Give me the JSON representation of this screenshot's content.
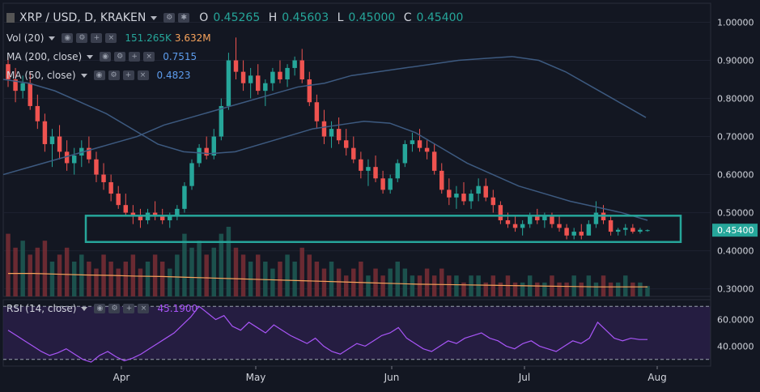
{
  "header": {
    "symbol_title": "XRP / USD, D, KRAKEN",
    "ohlc": {
      "o_label": "O",
      "o": "0.45265",
      "h_label": "H",
      "h": "0.45603",
      "l_label": "L",
      "l": "0.45000",
      "c_label": "C",
      "c": "0.45400"
    }
  },
  "indicators": {
    "vol": {
      "label": "Vol (20)",
      "value1": "151.265K",
      "value2": "3.632M"
    },
    "ma200": {
      "label": "MA (200, close)",
      "value": "0.7515"
    },
    "ma50": {
      "label": "MA (50, close)",
      "value": "0.4823"
    },
    "rsi": {
      "label": "RSI (14, close)",
      "value": "45.1900"
    }
  },
  "colors": {
    "background": "#131722",
    "up": "#26a69a",
    "down": "#ef5350",
    "ma200": "#3d5a80",
    "ma50": "#3d5a80",
    "vol_ma": "#f7a35c",
    "rsi": "#a855f7",
    "highlight_box": "#26a69a"
  },
  "chart_data": [
    {
      "type": "candlestick",
      "price_axis": {
        "ticks": [
          "1.00000",
          "0.90000",
          "0.80000",
          "0.70000",
          "0.60000",
          "0.50000",
          "0.40000",
          "0.30000"
        ],
        "current_price_label": "0.45400",
        "ylim": [
          0.28,
          1.05
        ]
      },
      "time_axis": {
        "labels": [
          "Apr",
          "May",
          "Jun",
          "Jul",
          "Aug"
        ]
      },
      "candles": [
        [
          0.89,
          0.91,
          0.83,
          0.85
        ],
        [
          0.85,
          0.88,
          0.79,
          0.82
        ],
        [
          0.82,
          0.86,
          0.8,
          0.84
        ],
        [
          0.84,
          0.87,
          0.77,
          0.78
        ],
        [
          0.78,
          0.81,
          0.72,
          0.74
        ],
        [
          0.74,
          0.76,
          0.66,
          0.68
        ],
        [
          0.68,
          0.72,
          0.62,
          0.7
        ],
        [
          0.7,
          0.73,
          0.64,
          0.66
        ],
        [
          0.66,
          0.69,
          0.61,
          0.63
        ],
        [
          0.63,
          0.67,
          0.6,
          0.65
        ],
        [
          0.65,
          0.69,
          0.62,
          0.67
        ],
        [
          0.67,
          0.7,
          0.63,
          0.64
        ],
        [
          0.64,
          0.66,
          0.58,
          0.6
        ],
        [
          0.6,
          0.63,
          0.56,
          0.58
        ],
        [
          0.58,
          0.6,
          0.53,
          0.55
        ],
        [
          0.55,
          0.57,
          0.51,
          0.52
        ],
        [
          0.52,
          0.55,
          0.49,
          0.5
        ],
        [
          0.5,
          0.52,
          0.47,
          0.49
        ],
        [
          0.49,
          0.51,
          0.46,
          0.48
        ],
        [
          0.48,
          0.51,
          0.47,
          0.5
        ],
        [
          0.5,
          0.53,
          0.48,
          0.49
        ],
        [
          0.49,
          0.51,
          0.47,
          0.48
        ],
        [
          0.48,
          0.5,
          0.46,
          0.49
        ],
        [
          0.49,
          0.52,
          0.48,
          0.51
        ],
        [
          0.51,
          0.58,
          0.5,
          0.57
        ],
        [
          0.57,
          0.64,
          0.56,
          0.63
        ],
        [
          0.63,
          0.68,
          0.62,
          0.67
        ],
        [
          0.67,
          0.7,
          0.64,
          0.65
        ],
        [
          0.65,
          0.72,
          0.64,
          0.7
        ],
        [
          0.7,
          0.8,
          0.69,
          0.78
        ],
        [
          0.78,
          0.92,
          0.77,
          0.9
        ],
        [
          0.9,
          0.96,
          0.85,
          0.87
        ],
        [
          0.87,
          0.9,
          0.82,
          0.84
        ],
        [
          0.84,
          0.88,
          0.8,
          0.86
        ],
        [
          0.86,
          0.89,
          0.81,
          0.82
        ],
        [
          0.82,
          0.85,
          0.78,
          0.84
        ],
        [
          0.84,
          0.88,
          0.82,
          0.87
        ],
        [
          0.87,
          0.9,
          0.84,
          0.85
        ],
        [
          0.85,
          0.89,
          0.83,
          0.88
        ],
        [
          0.88,
          0.91,
          0.86,
          0.9
        ],
        [
          0.9,
          0.93,
          0.84,
          0.85
        ],
        [
          0.85,
          0.87,
          0.78,
          0.79
        ],
        [
          0.79,
          0.81,
          0.72,
          0.74
        ],
        [
          0.74,
          0.77,
          0.68,
          0.7
        ],
        [
          0.7,
          0.74,
          0.67,
          0.72
        ],
        [
          0.72,
          0.75,
          0.68,
          0.69
        ],
        [
          0.69,
          0.72,
          0.65,
          0.67
        ],
        [
          0.67,
          0.7,
          0.63,
          0.64
        ],
        [
          0.64,
          0.66,
          0.59,
          0.61
        ],
        [
          0.61,
          0.64,
          0.57,
          0.62
        ],
        [
          0.62,
          0.65,
          0.58,
          0.59
        ],
        [
          0.59,
          0.61,
          0.55,
          0.56
        ],
        [
          0.56,
          0.6,
          0.55,
          0.59
        ],
        [
          0.59,
          0.64,
          0.58,
          0.63
        ],
        [
          0.63,
          0.69,
          0.62,
          0.68
        ],
        [
          0.68,
          0.71,
          0.66,
          0.69
        ],
        [
          0.69,
          0.72,
          0.66,
          0.67
        ],
        [
          0.67,
          0.69,
          0.64,
          0.66
        ],
        [
          0.66,
          0.68,
          0.6,
          0.61
        ],
        [
          0.61,
          0.63,
          0.55,
          0.56
        ],
        [
          0.56,
          0.59,
          0.52,
          0.54
        ],
        [
          0.54,
          0.57,
          0.51,
          0.55
        ],
        [
          0.55,
          0.58,
          0.52,
          0.53
        ],
        [
          0.53,
          0.56,
          0.51,
          0.55
        ],
        [
          0.55,
          0.59,
          0.53,
          0.57
        ],
        [
          0.57,
          0.59,
          0.53,
          0.54
        ],
        [
          0.54,
          0.56,
          0.5,
          0.52
        ],
        [
          0.52,
          0.53,
          0.47,
          0.48
        ],
        [
          0.48,
          0.5,
          0.46,
          0.47
        ],
        [
          0.47,
          0.49,
          0.45,
          0.46
        ],
        [
          0.46,
          0.48,
          0.44,
          0.47
        ],
        [
          0.47,
          0.5,
          0.46,
          0.49
        ],
        [
          0.49,
          0.51,
          0.47,
          0.48
        ],
        [
          0.48,
          0.5,
          0.46,
          0.49
        ],
        [
          0.49,
          0.5,
          0.46,
          0.47
        ],
        [
          0.47,
          0.49,
          0.45,
          0.46
        ],
        [
          0.46,
          0.47,
          0.43,
          0.44
        ],
        [
          0.44,
          0.46,
          0.43,
          0.45
        ],
        [
          0.45,
          0.47,
          0.43,
          0.44
        ],
        [
          0.44,
          0.48,
          0.44,
          0.47
        ],
        [
          0.47,
          0.53,
          0.46,
          0.5
        ],
        [
          0.5,
          0.52,
          0.47,
          0.48
        ],
        [
          0.48,
          0.49,
          0.44,
          0.45
        ],
        [
          0.45,
          0.46,
          0.44,
          0.455
        ],
        [
          0.455,
          0.47,
          0.44,
          0.46
        ],
        [
          0.46,
          0.47,
          0.445,
          0.45
        ],
        [
          0.45,
          0.46,
          0.445,
          0.455
        ],
        [
          0.45265,
          0.45603,
          0.45,
          0.454
        ]
      ],
      "ma200": [
        0.6,
        0.62,
        0.64,
        0.66,
        0.68,
        0.7,
        0.73,
        0.75,
        0.77,
        0.79,
        0.81,
        0.83,
        0.84,
        0.86,
        0.87,
        0.88,
        0.89,
        0.9,
        0.905,
        0.91,
        0.9,
        0.87,
        0.83,
        0.79,
        0.75
      ],
      "ma50": [
        0.85,
        0.84,
        0.82,
        0.79,
        0.76,
        0.72,
        0.68,
        0.66,
        0.655,
        0.66,
        0.68,
        0.7,
        0.72,
        0.73,
        0.74,
        0.735,
        0.71,
        0.67,
        0.63,
        0.6,
        0.57,
        0.55,
        0.53,
        0.515,
        0.5,
        0.48
      ],
      "volume": [
        0.9,
        0.7,
        0.8,
        0.6,
        0.7,
        0.8,
        0.5,
        0.6,
        0.7,
        0.5,
        0.6,
        0.5,
        0.4,
        0.6,
        0.5,
        0.4,
        0.5,
        0.6,
        0.4,
        0.5,
        0.6,
        0.5,
        0.4,
        0.6,
        0.9,
        0.7,
        0.8,
        0.6,
        0.7,
        0.9,
        1.0,
        0.7,
        0.6,
        0.5,
        0.6,
        0.5,
        0.4,
        0.5,
        0.6,
        0.5,
        0.7,
        0.6,
        0.5,
        0.4,
        0.5,
        0.4,
        0.3,
        0.4,
        0.5,
        0.3,
        0.4,
        0.3,
        0.4,
        0.5,
        0.4,
        0.3,
        0.3,
        0.4,
        0.3,
        0.4,
        0.3,
        0.3,
        0.2,
        0.3,
        0.3,
        0.2,
        0.3,
        0.2,
        0.3,
        0.2,
        0.2,
        0.3,
        0.2,
        0.2,
        0.3,
        0.2,
        0.2,
        0.3,
        0.2,
        0.3,
        0.2,
        0.3,
        0.2,
        0.2,
        0.3,
        0.2,
        0.2,
        0.15
      ],
      "vol_ma": [
        0.6,
        0.6,
        0.58,
        0.56,
        0.55,
        0.53,
        0.52,
        0.5,
        0.48,
        0.46,
        0.44,
        0.42,
        0.4,
        0.38,
        0.36,
        0.34,
        0.32,
        0.31,
        0.3,
        0.29,
        0.28,
        0.27,
        0.26,
        0.25,
        0.25,
        0.25
      ],
      "highlight_box": {
        "price_range": [
          0.423,
          0.492
        ]
      }
    },
    {
      "type": "line",
      "name": "RSI (14, close)",
      "ylim": [
        25,
        75
      ],
      "ticks": [
        "60.0000",
        "40.0000"
      ],
      "bands": [
        30,
        70
      ],
      "values": [
        52,
        48,
        44,
        40,
        36,
        33,
        35,
        38,
        34,
        30,
        28,
        33,
        36,
        32,
        29,
        31,
        34,
        38,
        42,
        46,
        50,
        56,
        62,
        70,
        65,
        60,
        63,
        55,
        52,
        58,
        54,
        50,
        56,
        52,
        48,
        45,
        42,
        46,
        40,
        36,
        34,
        38,
        42,
        40,
        44,
        48,
        50,
        54,
        46,
        42,
        38,
        36,
        40,
        44,
        42,
        46,
        48,
        50,
        46,
        44,
        40,
        38,
        42,
        44,
        40,
        38,
        36,
        40,
        44,
        42,
        46,
        58,
        52,
        46,
        44,
        46,
        45,
        45
      ]
    }
  ]
}
